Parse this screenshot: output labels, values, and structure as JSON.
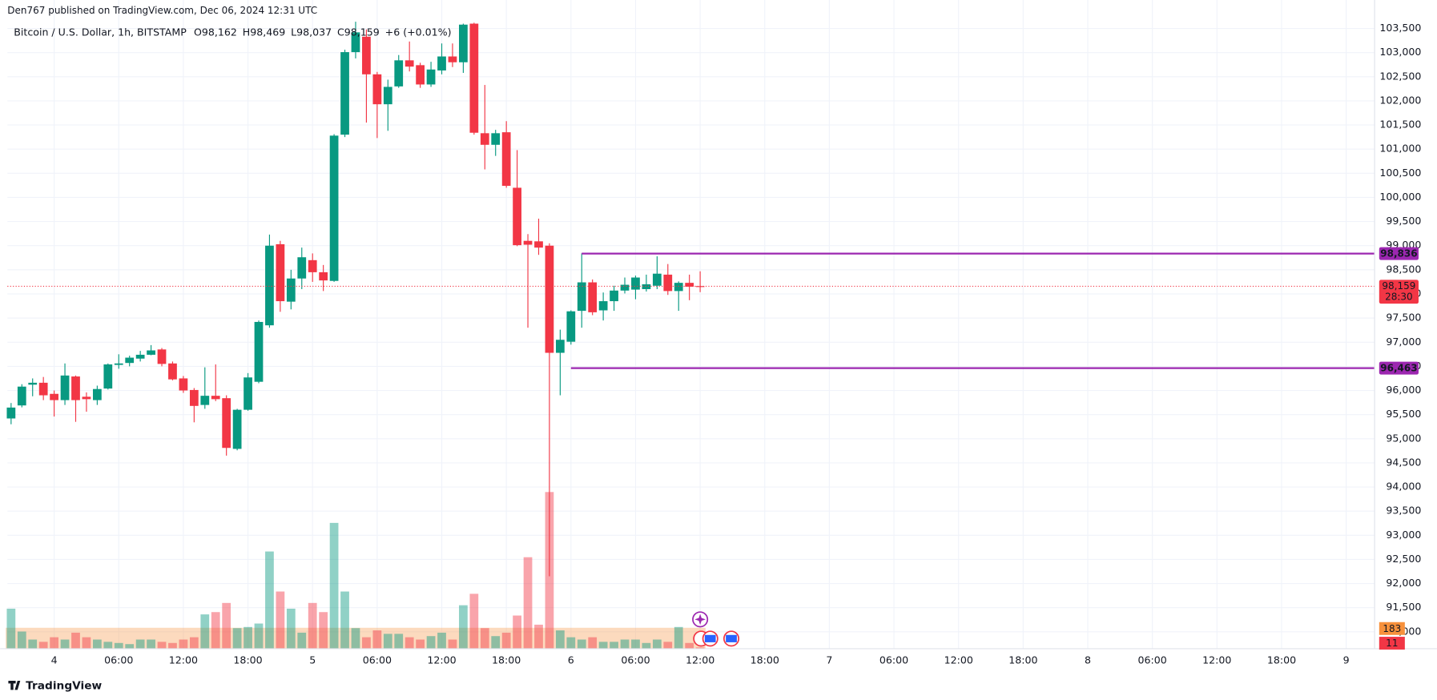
{
  "header": {
    "published": "Den767 published on TradingView.com, Dec 06, 2024 12:31 UTC",
    "footer": "TradingView"
  },
  "chart_data": {
    "type": "candlestick",
    "title": "Bitcoin / U.S. Dollar, 1h, BITSTAMP",
    "legend": [
      {
        "key": "O",
        "text": "98,162"
      },
      {
        "key": "H",
        "text": "98,469"
      },
      {
        "key": "L",
        "text": "98,037"
      },
      {
        "key": "C",
        "text": "98,159"
      }
    ],
    "change": "+6 (+0.01%)",
    "x": [
      -4,
      -3,
      -2,
      -1,
      0,
      1,
      2,
      3,
      4,
      5,
      6,
      7,
      8,
      9,
      10,
      11,
      12,
      13,
      14,
      15,
      16,
      17,
      18,
      19,
      20,
      21,
      22,
      23,
      24,
      25,
      26,
      27,
      28,
      29,
      30,
      31,
      32,
      33,
      34,
      35,
      36,
      37,
      38,
      39,
      40,
      41,
      42,
      43,
      44,
      45,
      46,
      47,
      48,
      49,
      50,
      51,
      52,
      53,
      54,
      55,
      56,
      57,
      58,
      59,
      60
    ],
    "open": [
      95420,
      95690,
      96120,
      96160,
      95930,
      95800,
      96290,
      95870,
      95800,
      96040,
      96530,
      96570,
      96660,
      96740,
      96850,
      96560,
      96250,
      96010,
      95700,
      95890,
      95840,
      94790,
      95600,
      96180,
      97350,
      99030,
      97840,
      98320,
      98700,
      98450,
      98270,
      101300,
      103010,
      103330,
      102550,
      101930,
      102300,
      102840,
      102740,
      102340,
      102630,
      102920,
      102800,
      103600,
      101330,
      101090,
      101350,
      100200,
      99100,
      99090,
      99000,
      96780,
      97010,
      97650,
      98240,
      97660,
      97850,
      98070,
      98090,
      98100,
      98170,
      98400,
      98060,
      98230,
      98162
    ],
    "high": [
      95740,
      96130,
      96250,
      96280,
      96000,
      96560,
      96310,
      95960,
      96100,
      96560,
      96750,
      96720,
      96820,
      96940,
      96880,
      96600,
      96300,
      96050,
      96480,
      96540,
      95900,
      95620,
      96360,
      97450,
      99230,
      99100,
      98500,
      98960,
      98840,
      98600,
      101310,
      103060,
      103640,
      103480,
      102600,
      102440,
      102950,
      103230,
      102790,
      102810,
      103190,
      103190,
      103600,
      103620,
      102330,
      101400,
      101580,
      100980,
      99240,
      99560,
      99050,
      97260,
      97660,
      98840,
      98300,
      98030,
      98170,
      98340,
      98380,
      98400,
      98780,
      98620,
      98260,
      98400,
      98469
    ],
    "low": [
      95300,
      95650,
      95880,
      95800,
      95460,
      95700,
      95350,
      95560,
      95700,
      96020,
      96450,
      96500,
      96600,
      96730,
      96500,
      96210,
      95950,
      95340,
      95620,
      95780,
      94650,
      94760,
      95580,
      96150,
      97300,
      97630,
      97680,
      98100,
      98250,
      98060,
      98250,
      101250,
      102880,
      101550,
      101230,
      101380,
      102270,
      102610,
      102270,
      102290,
      102550,
      102700,
      102580,
      101300,
      100580,
      100860,
      100200,
      98990,
      97300,
      98810,
      92150,
      95900,
      96950,
      97300,
      97560,
      97450,
      97650,
      98010,
      97890,
      98050,
      98100,
      97980,
      97650,
      97870,
      98037
    ],
    "close": [
      95646,
      96080,
      96160,
      95900,
      95800,
      96310,
      95800,
      95820,
      96030,
      96540,
      96560,
      96680,
      96740,
      96830,
      96550,
      96230,
      96000,
      95680,
      95890,
      95820,
      94810,
      95600,
      96270,
      97420,
      99000,
      97850,
      98320,
      98760,
      98450,
      98280,
      101280,
      103010,
      103420,
      102550,
      101930,
      102290,
      102840,
      102710,
      102340,
      102650,
      102920,
      102800,
      103580,
      101340,
      101090,
      101330,
      100240,
      99010,
      99020,
      98960,
      96780,
      97050,
      97640,
      98240,
      97620,
      97850,
      98070,
      98190,
      98340,
      98200,
      98420,
      98060,
      98230,
      98150,
      98159
    ],
    "volume": [
      350,
      150,
      80,
      60,
      100,
      80,
      140,
      100,
      80,
      60,
      50,
      40,
      80,
      80,
      60,
      50,
      80,
      100,
      300,
      320,
      400,
      180,
      190,
      220,
      850,
      500,
      350,
      140,
      400,
      320,
      1100,
      500,
      180,
      100,
      160,
      130,
      130,
      100,
      80,
      110,
      140,
      80,
      380,
      480,
      180,
      110,
      140,
      290,
      800,
      210,
      1370,
      160,
      100,
      80,
      100,
      60,
      60,
      80,
      80,
      50,
      80,
      60,
      190,
      50,
      11
    ],
    "volume_ma": 183,
    "up_color": "#089981",
    "down_color": "#f23645",
    "level_color": "#9c27b0",
    "xlim": [
      -4.34,
      122.64
    ],
    "ylim": [
      90650,
      104090
    ],
    "xticks": [
      {
        "value": 0,
        "label": "4"
      },
      {
        "value": 6,
        "label": "06:00"
      },
      {
        "value": 12,
        "label": "12:00"
      },
      {
        "value": 18,
        "label": "18:00"
      },
      {
        "value": 24,
        "label": "5"
      },
      {
        "value": 30,
        "label": "06:00"
      },
      {
        "value": 36,
        "label": "12:00"
      },
      {
        "value": 42,
        "label": "18:00"
      },
      {
        "value": 48,
        "label": "6"
      },
      {
        "value": 54,
        "label": "06:00"
      },
      {
        "value": 60,
        "label": "12:00"
      },
      {
        "value": 66,
        "label": "18:00"
      },
      {
        "value": 72,
        "label": "7"
      },
      {
        "value": 78,
        "label": "06:00"
      },
      {
        "value": 84,
        "label": "12:00"
      },
      {
        "value": 90,
        "label": "18:00"
      },
      {
        "value": 96,
        "label": "8"
      },
      {
        "value": 102,
        "label": "06:00"
      },
      {
        "value": 108,
        "label": "12:00"
      },
      {
        "value": 114,
        "label": "18:00"
      },
      {
        "value": 120,
        "label": "9"
      }
    ],
    "yticks": [
      {
        "value": 91000,
        "label": "91,000"
      },
      {
        "value": 91500,
        "label": "91,500"
      },
      {
        "value": 92000,
        "label": "92,000"
      },
      {
        "value": 92500,
        "label": "92,500"
      },
      {
        "value": 93000,
        "label": "93,000"
      },
      {
        "value": 93500,
        "label": "93,500"
      },
      {
        "value": 94000,
        "label": "94,000"
      },
      {
        "value": 94500,
        "label": "94,500"
      },
      {
        "value": 95000,
        "label": "95,000"
      },
      {
        "value": 95500,
        "label": "95,500"
      },
      {
        "value": 96000,
        "label": "96,000"
      },
      {
        "value": 96500,
        "label": "96,500"
      },
      {
        "value": 97000,
        "label": "97,000"
      },
      {
        "value": 97500,
        "label": "97,500"
      },
      {
        "value": 98000,
        "label": "98,000"
      },
      {
        "value": 98500,
        "label": "98,500"
      },
      {
        "value": 99000,
        "label": "99,000"
      },
      {
        "value": 99500,
        "label": "99,500"
      },
      {
        "value": 100000,
        "label": "100,000"
      },
      {
        "value": 100500,
        "label": "100,500"
      },
      {
        "value": 101000,
        "label": "101,000"
      },
      {
        "value": 101500,
        "label": "101,500"
      },
      {
        "value": 102000,
        "label": "102,000"
      },
      {
        "value": 102500,
        "label": "102,500"
      },
      {
        "value": 103000,
        "label": "103,000"
      },
      {
        "value": 103500,
        "label": "103,500"
      }
    ],
    "grid": true,
    "levels": [
      {
        "value": 98836,
        "label": "98,836",
        "start": 49
      },
      {
        "value": 96463,
        "label": "96,463",
        "start": 48
      }
    ],
    "last_price": {
      "value": 98159,
      "label": "98,159"
    },
    "countdown": "28:30"
  }
}
